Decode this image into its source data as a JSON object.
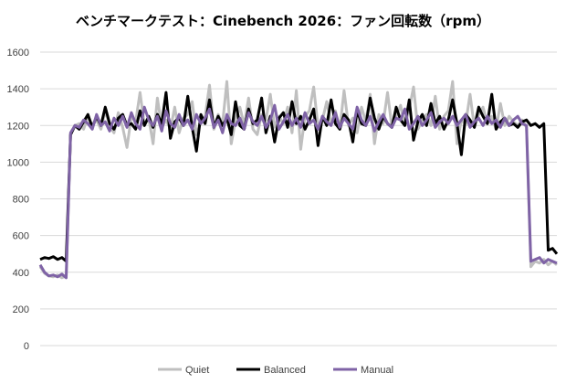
{
  "chart_data": {
    "type": "line",
    "title": "ベンチマークテスト：Cinebench 2026：ファン回転数（rpm）",
    "xlabel": "",
    "ylabel": "",
    "ylim": [
      0,
      1600
    ],
    "yticks": [
      0,
      200,
      400,
      600,
      800,
      1000,
      1200,
      1400,
      1600
    ],
    "grid": true,
    "legend_position": "bottom",
    "x_count": 120,
    "series": [
      {
        "name": "Quiet",
        "color": "#bfbfbf",
        "values": [
          430,
          395,
          380,
          375,
          385,
          370,
          380,
          1150,
          1200,
          1210,
          1180,
          1250,
          1200,
          1230,
          1180,
          1280,
          1200,
          1160,
          1270,
          1190,
          1080,
          1250,
          1220,
          1380,
          1200,
          1240,
          1100,
          1350,
          1190,
          1230,
          1180,
          1300,
          1160,
          1240,
          1260,
          1330,
          1150,
          1220,
          1250,
          1420,
          1180,
          1260,
          1210,
          1440,
          1100,
          1230,
          1300,
          1200,
          1350,
          1180,
          1150,
          1260,
          1230,
          1370,
          1190,
          1250,
          1210,
          1300,
          1160,
          1390,
          1070,
          1250,
          1280,
          1410,
          1190,
          1230,
          1330,
          1210,
          1280,
          1180,
          1390,
          1200,
          1240,
          1160,
          1300,
          1220,
          1370,
          1100,
          1260,
          1210,
          1380,
          1190,
          1250,
          1310,
          1200,
          1290,
          1410,
          1180,
          1230,
          1260,
          1200,
          1360,
          1180,
          1250,
          1280,
          1440,
          1100,
          1230,
          1210,
          1370,
          1190,
          1260,
          1300,
          1210,
          1250,
          1180,
          1320,
          1200,
          1250,
          1220,
          1200,
          1230,
          1190,
          430,
          460,
          450,
          470,
          440,
          460,
          440
        ]
      },
      {
        "name": "Balanced",
        "color": "#000000",
        "values": [
          470,
          480,
          475,
          485,
          470,
          480,
          460,
          1150,
          1200,
          1180,
          1220,
          1260,
          1190,
          1250,
          1200,
          1300,
          1210,
          1180,
          1240,
          1260,
          1200,
          1210,
          1180,
          1280,
          1200,
          1250,
          1190,
          1260,
          1210,
          1380,
          1130,
          1220,
          1240,
          1200,
          1360,
          1190,
          1060,
          1260,
          1210,
          1340,
          1190,
          1250,
          1200,
          1240,
          1150,
          1330,
          1200,
          1180,
          1290,
          1210,
          1230,
          1350,
          1160,
          1250,
          1110,
          1240,
          1270,
          1190,
          1330,
          1210,
          1250,
          1180,
          1230,
          1290,
          1090,
          1250,
          1200,
          1340,
          1210,
          1180,
          1260,
          1230,
          1110,
          1280,
          1210,
          1200,
          1350,
          1240,
          1180,
          1250,
          1210,
          1190,
          1300,
          1230,
          1200,
          1340,
          1120,
          1220,
          1260,
          1200,
          1320,
          1210,
          1250,
          1180,
          1230,
          1340,
          1210,
          1040,
          1260,
          1230,
          1190,
          1300,
          1250,
          1210,
          1370,
          1180,
          1220,
          1240,
          1200,
          1210,
          1190,
          1220,
          1230,
          1200,
          1210,
          1190,
          1210,
          520,
          530,
          500
        ]
      },
      {
        "name": "Manual",
        "color": "#7f63a6",
        "values": [
          440,
          400,
          380,
          385,
          375,
          390,
          370,
          1160,
          1200,
          1190,
          1230,
          1210,
          1180,
          1260,
          1200,
          1220,
          1170,
          1240,
          1200,
          1250,
          1190,
          1270,
          1210,
          1180,
          1300,
          1230,
          1200,
          1250,
          1170,
          1280,
          1210,
          1190,
          1260,
          1200,
          1230,
          1180,
          1260,
          1210,
          1240,
          1290,
          1190,
          1230,
          1160,
          1260,
          1210,
          1200,
          1240,
          1180,
          1270,
          1220,
          1200,
          1250,
          1190,
          1230,
          1310,
          1180,
          1220,
          1260,
          1200,
          1240,
          1190,
          1270,
          1210,
          1230,
          1180,
          1250,
          1220,
          1200,
          1270,
          1190,
          1240,
          1210,
          1180,
          1300,
          1230,
          1200,
          1250,
          1170,
          1220,
          1260,
          1210,
          1190,
          1240,
          1230,
          1290,
          1180,
          1210,
          1250,
          1200,
          1230,
          1270,
          1190,
          1220,
          1240,
          1210,
          1250,
          1200,
          1230,
          1260,
          1190,
          1220,
          1240,
          1200,
          1250,
          1210,
          1230,
          1190,
          1240,
          1200,
          1230,
          1250,
          1210,
          1200,
          460,
          470,
          480,
          450,
          470,
          460,
          450
        ]
      }
    ]
  }
}
